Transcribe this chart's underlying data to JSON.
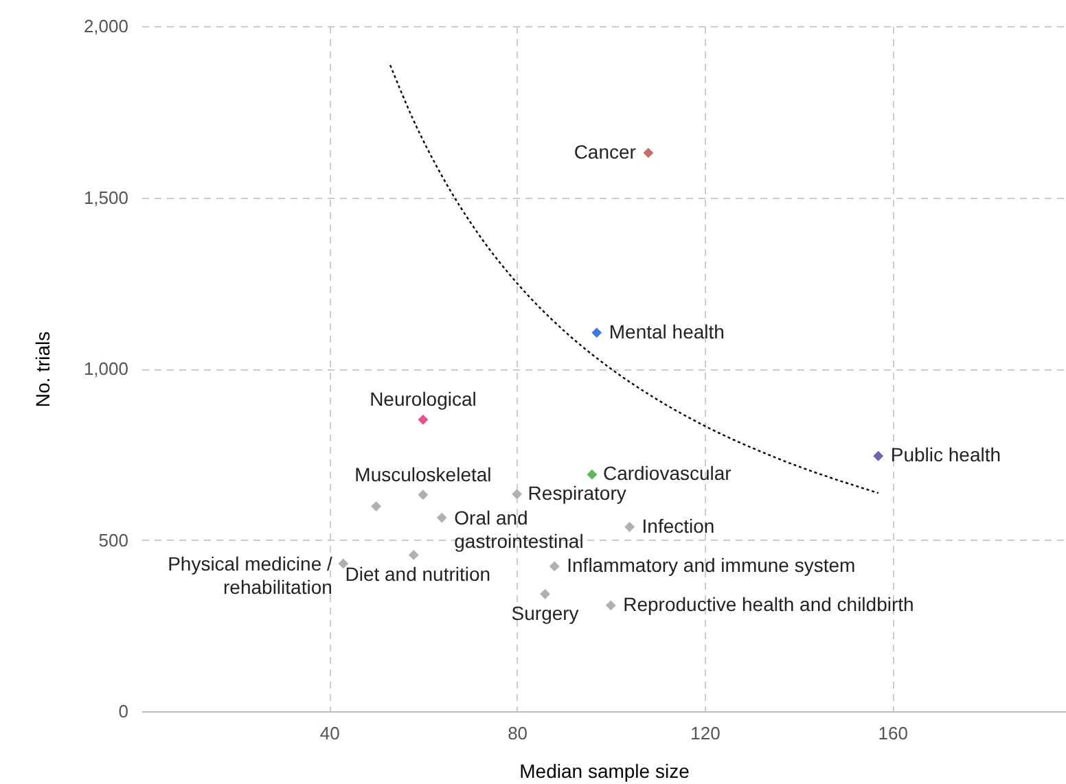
{
  "chart_data": {
    "type": "scatter",
    "xlabel": "Median sample size",
    "ylabel": "No. trials",
    "xlim": [
      0,
      197
    ],
    "ylim": [
      0,
      2000
    ],
    "xticks": [
      40,
      80,
      120,
      160
    ],
    "yticks": [
      0,
      {
        "value": 500,
        "label": "500"
      },
      {
        "value": 1000,
        "label": "1,000"
      },
      {
        "value": 1500,
        "label": "1,500"
      },
      {
        "value": 2000,
        "label": "2,000"
      }
    ],
    "grid": true,
    "series": [
      {
        "marker": "diamond",
        "x": [
          108,
          97,
          157,
          60,
          96,
          60,
          80,
          50,
          64,
          104,
          43,
          58,
          88,
          86,
          100
        ],
        "values": [
          1630,
          1105,
          745,
          851,
          691,
          632,
          634,
          598,
          565,
          538,
          431,
          456,
          423,
          342,
          309
        ],
        "colors": [
          "#c96b6b",
          "#3b7be8",
          "#6f63b0",
          "#e8508f",
          "#5cb85c",
          "#b0b0b0",
          "#b0b0b0",
          "#b0b0b0",
          "#b0b0b0",
          "#b0b0b0",
          "#b0b0b0",
          "#b0b0b0",
          "#b0b0b0",
          "#b0b0b0",
          "#b0b0b0"
        ]
      },
      {
        "type": "line",
        "line_style": "dotted",
        "color": "#000000",
        "x": [
          53,
          58,
          64,
          72,
          80,
          90,
          100,
          110,
          120,
          135,
          157
        ],
        "values": [
          1886,
          1724,
          1563,
          1389,
          1250,
          1111,
          1000,
          909,
          833,
          741,
          637
        ]
      }
    ],
    "annotations": [
      {
        "text": "Cancer",
        "x": 108,
        "y": 1630
      },
      {
        "text": "Mental health",
        "x": 97,
        "y": 1105
      },
      {
        "text": "Public health",
        "x": 157,
        "y": 745
      },
      {
        "text": "Neurological",
        "x": 60,
        "y": 851
      },
      {
        "text": "Cardiovascular",
        "x": 96,
        "y": 691
      },
      {
        "text": "Musculoskeletal",
        "x": 60,
        "y": 632
      },
      {
        "text": "Respiratory",
        "x": 80,
        "y": 634
      },
      {
        "text": "Oral and\ngastrointestinal",
        "x": 64,
        "y": 565
      },
      {
        "text": "Infection",
        "x": 104,
        "y": 538
      },
      {
        "text": "Physical medicine /\nrehabilitation",
        "x": 43,
        "y": 431
      },
      {
        "text": "Diet and nutrition",
        "x": 58,
        "y": 456
      },
      {
        "text": "Inflammatory and immune system",
        "x": 88,
        "y": 423
      },
      {
        "text": "Surgery",
        "x": 86,
        "y": 342
      },
      {
        "text": "Reproductive health and childbirth",
        "x": 100,
        "y": 309
      }
    ]
  }
}
